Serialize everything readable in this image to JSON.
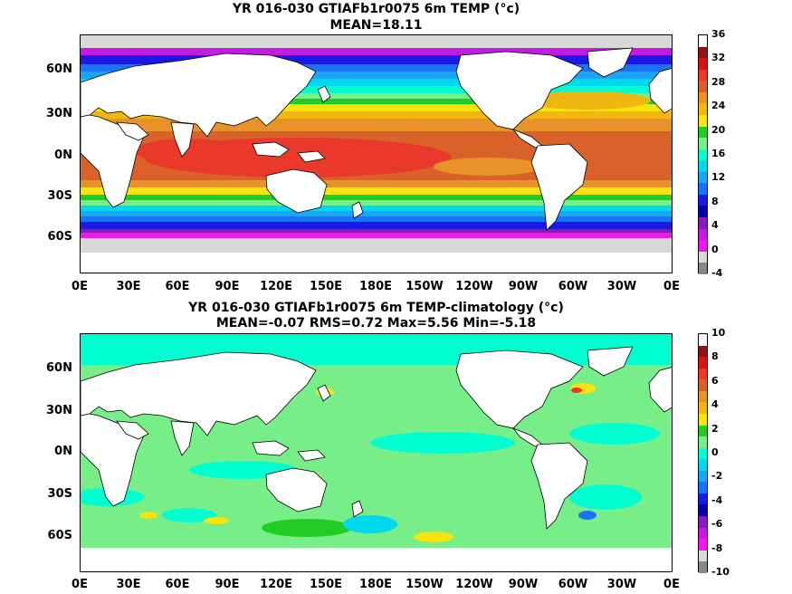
{
  "panels": [
    {
      "title": "YR 016-030 GTIAFb1r0075 6m TEMP (°c)",
      "subtitle": "MEAN=18.11",
      "colorbar_labels": [
        "36",
        "32",
        "28",
        "24",
        "20",
        "16",
        "12",
        "8",
        "4",
        "0",
        "-4"
      ],
      "colorbar_colors": [
        "#f9f9f9",
        "#8c1616",
        "#d21515",
        "#e8392a",
        "#d8622a",
        "#e8922a",
        "#f0b612",
        "#f6e40e",
        "#22cc22",
        "#77ee88",
        "#00ffd0",
        "#00d8ee",
        "#1aa6f6",
        "#1a72f6",
        "#1a1ae4",
        "#0000aa",
        "#8a1ab8",
        "#c41ae4",
        "#f01ae8",
        "#d8d8d8",
        "#888888"
      ]
    },
    {
      "title": "YR 016-030 GTIAFb1r0075 6m TEMP-climatology (°c)",
      "subtitle": "MEAN=-0.07   RMS=0.72   Max=5.56   Min=-5.18",
      "colorbar_labels": [
        "10",
        "8",
        "6",
        "4",
        "2",
        "0",
        "-2",
        "-4",
        "-6",
        "-8",
        "-10"
      ],
      "colorbar_colors": [
        "#f9f9f9",
        "#8c1616",
        "#d21515",
        "#e8392a",
        "#d8622a",
        "#e8922a",
        "#f0b612",
        "#f6e40e",
        "#22cc22",
        "#77ee88",
        "#00ffd0",
        "#00d8ee",
        "#1aa6f6",
        "#1a72f6",
        "#1a1ae4",
        "#0000aa",
        "#8a1ab8",
        "#c41ae4",
        "#f01ae8",
        "#d8d8d8",
        "#888888"
      ]
    }
  ],
  "lat_labels": [
    "60N",
    "30N",
    "0N",
    "30S",
    "60S"
  ],
  "lon_labels": [
    "0E",
    "30E",
    "60E",
    "90E",
    "120E",
    "150E",
    "180E",
    "150W",
    "120W",
    "90W",
    "60W",
    "30W",
    "0E"
  ]
}
